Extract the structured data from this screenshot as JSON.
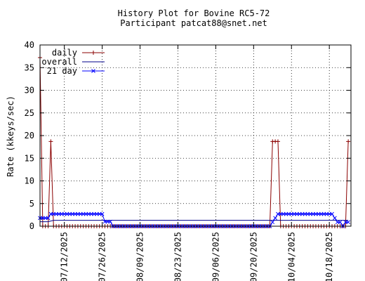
{
  "chart_data": {
    "type": "line",
    "title": "History Plot for Bovine RC5-72",
    "subtitle": "Participant patcat88@snet.net",
    "xlabel": "",
    "ylabel": "Rate (kkeys/sec)",
    "ylim": [
      0,
      40
    ],
    "yticks": [
      0,
      5,
      10,
      15,
      20,
      25,
      30,
      35,
      40
    ],
    "xlim": [
      "2025-07-03",
      "2025-10-26"
    ],
    "xticks": [
      "2025-07-12",
      "2025-07-26",
      "2025-08-09",
      "2025-08-23",
      "2025-09-06",
      "2025-09-20",
      "2025-10-04",
      "2025-10-18"
    ],
    "xtick_labels": [
      "07/12/2025",
      "07/26/2025",
      "08/09/2025",
      "08/23/2025",
      "09/06/2025",
      "09/20/2025",
      "10/04/2025",
      "10/18/2025"
    ],
    "grid": true,
    "legend_position": "top-left",
    "series": [
      {
        "name": "daily",
        "color": "#8b0000",
        "marker": "+",
        "points": [
          [
            "2025-07-03",
            37.2
          ],
          [
            "2025-07-04",
            0
          ],
          [
            "2025-07-05",
            0
          ],
          [
            "2025-07-06",
            0
          ],
          [
            "2025-07-07",
            18.7
          ],
          [
            "2025-07-08",
            0
          ],
          [
            "2025-07-09",
            0
          ],
          [
            "2025-07-10",
            0
          ],
          [
            "2025-07-11",
            0
          ],
          [
            "2025-07-12",
            0
          ],
          [
            "2025-07-13",
            0
          ],
          [
            "2025-07-14",
            0
          ],
          [
            "2025-07-15",
            0
          ],
          [
            "2025-07-16",
            0
          ],
          [
            "2025-07-17",
            0
          ],
          [
            "2025-07-18",
            0
          ],
          [
            "2025-07-19",
            0
          ],
          [
            "2025-07-20",
            0
          ],
          [
            "2025-07-21",
            0
          ],
          [
            "2025-07-22",
            0
          ],
          [
            "2025-07-23",
            0
          ],
          [
            "2025-07-24",
            0
          ],
          [
            "2025-07-25",
            0
          ],
          [
            "2025-07-26",
            0
          ],
          [
            "2025-07-27",
            0
          ],
          [
            "2025-07-28",
            0
          ],
          [
            "2025-07-29",
            0
          ],
          [
            "2025-07-30",
            0
          ],
          [
            "2025-07-31",
            0
          ],
          [
            "2025-08-01",
            0
          ],
          [
            "2025-08-02",
            0
          ],
          [
            "2025-08-03",
            0
          ],
          [
            "2025-08-04",
            0
          ],
          [
            "2025-08-05",
            0
          ],
          [
            "2025-08-06",
            0
          ],
          [
            "2025-08-07",
            0
          ],
          [
            "2025-08-08",
            0
          ],
          [
            "2025-08-09",
            0
          ],
          [
            "2025-08-10",
            0
          ],
          [
            "2025-08-11",
            0
          ],
          [
            "2025-08-12",
            0
          ],
          [
            "2025-08-13",
            0
          ],
          [
            "2025-08-14",
            0
          ],
          [
            "2025-08-15",
            0
          ],
          [
            "2025-08-16",
            0
          ],
          [
            "2025-08-17",
            0
          ],
          [
            "2025-08-18",
            0
          ],
          [
            "2025-08-19",
            0
          ],
          [
            "2025-08-20",
            0
          ],
          [
            "2025-08-21",
            0
          ],
          [
            "2025-08-22",
            0
          ],
          [
            "2025-08-23",
            0
          ],
          [
            "2025-08-24",
            0
          ],
          [
            "2025-08-25",
            0
          ],
          [
            "2025-08-26",
            0
          ],
          [
            "2025-08-27",
            0
          ],
          [
            "2025-08-28",
            0
          ],
          [
            "2025-08-29",
            0
          ],
          [
            "2025-08-30",
            0
          ],
          [
            "2025-08-31",
            0
          ],
          [
            "2025-09-01",
            0
          ],
          [
            "2025-09-02",
            0
          ],
          [
            "2025-09-03",
            0
          ],
          [
            "2025-09-04",
            0
          ],
          [
            "2025-09-05",
            0
          ],
          [
            "2025-09-06",
            0
          ],
          [
            "2025-09-07",
            0
          ],
          [
            "2025-09-08",
            0
          ],
          [
            "2025-09-09",
            0
          ],
          [
            "2025-09-10",
            0
          ],
          [
            "2025-09-11",
            0
          ],
          [
            "2025-09-12",
            0
          ],
          [
            "2025-09-13",
            0
          ],
          [
            "2025-09-14",
            0
          ],
          [
            "2025-09-15",
            0
          ],
          [
            "2025-09-16",
            0
          ],
          [
            "2025-09-17",
            0
          ],
          [
            "2025-09-18",
            0
          ],
          [
            "2025-09-19",
            0
          ],
          [
            "2025-09-20",
            0
          ],
          [
            "2025-09-21",
            0
          ],
          [
            "2025-09-22",
            0
          ],
          [
            "2025-09-23",
            0
          ],
          [
            "2025-09-24",
            0
          ],
          [
            "2025-09-25",
            0
          ],
          [
            "2025-09-26",
            0
          ],
          [
            "2025-09-27",
            18.7
          ],
          [
            "2025-09-28",
            18.7
          ],
          [
            "2025-09-29",
            18.7
          ],
          [
            "2025-09-30",
            0
          ],
          [
            "2025-10-01",
            0
          ],
          [
            "2025-10-02",
            0
          ],
          [
            "2025-10-03",
            0
          ],
          [
            "2025-10-04",
            0
          ],
          [
            "2025-10-05",
            0
          ],
          [
            "2025-10-06",
            0
          ],
          [
            "2025-10-07",
            0
          ],
          [
            "2025-10-08",
            0
          ],
          [
            "2025-10-09",
            0
          ],
          [
            "2025-10-10",
            0
          ],
          [
            "2025-10-11",
            0
          ],
          [
            "2025-10-12",
            0
          ],
          [
            "2025-10-13",
            0
          ],
          [
            "2025-10-14",
            0
          ],
          [
            "2025-10-15",
            0
          ],
          [
            "2025-10-16",
            0
          ],
          [
            "2025-10-17",
            0
          ],
          [
            "2025-10-18",
            0
          ],
          [
            "2025-10-19",
            0
          ],
          [
            "2025-10-20",
            0
          ],
          [
            "2025-10-21",
            0
          ],
          [
            "2025-10-22",
            0
          ],
          [
            "2025-10-23",
            0
          ],
          [
            "2025-10-24",
            0
          ],
          [
            "2025-10-25",
            18.7
          ]
        ]
      },
      {
        "name": "overall",
        "color": "#00008b",
        "marker": "",
        "points": [
          [
            "2025-07-03",
            1.0
          ],
          [
            "2025-07-06",
            1.0
          ],
          [
            "2025-07-08",
            1.3
          ],
          [
            "2025-10-25",
            1.3
          ]
        ]
      },
      {
        "name": "21 day",
        "color": "#0000ff",
        "marker": "x",
        "points": [
          [
            "2025-07-03",
            1.8
          ],
          [
            "2025-07-04",
            1.8
          ],
          [
            "2025-07-05",
            1.8
          ],
          [
            "2025-07-06",
            1.8
          ],
          [
            "2025-07-07",
            2.7
          ],
          [
            "2025-07-08",
            2.7
          ],
          [
            "2025-07-09",
            2.7
          ],
          [
            "2025-07-10",
            2.7
          ],
          [
            "2025-07-11",
            2.7
          ],
          [
            "2025-07-12",
            2.7
          ],
          [
            "2025-07-13",
            2.7
          ],
          [
            "2025-07-14",
            2.7
          ],
          [
            "2025-07-15",
            2.7
          ],
          [
            "2025-07-16",
            2.7
          ],
          [
            "2025-07-17",
            2.7
          ],
          [
            "2025-07-18",
            2.7
          ],
          [
            "2025-07-19",
            2.7
          ],
          [
            "2025-07-20",
            2.7
          ],
          [
            "2025-07-21",
            2.7
          ],
          [
            "2025-07-22",
            2.7
          ],
          [
            "2025-07-23",
            2.7
          ],
          [
            "2025-07-24",
            2.7
          ],
          [
            "2025-07-25",
            2.7
          ],
          [
            "2025-07-26",
            2.7
          ],
          [
            "2025-07-27",
            1.0
          ],
          [
            "2025-07-28",
            1.0
          ],
          [
            "2025-07-29",
            1.0
          ],
          [
            "2025-07-30",
            0
          ],
          [
            "2025-07-31",
            0
          ],
          [
            "2025-08-01",
            0
          ],
          [
            "2025-08-02",
            0
          ],
          [
            "2025-08-03",
            0
          ],
          [
            "2025-08-04",
            0
          ],
          [
            "2025-08-05",
            0
          ],
          [
            "2025-08-06",
            0
          ],
          [
            "2025-08-07",
            0
          ],
          [
            "2025-08-08",
            0
          ],
          [
            "2025-08-09",
            0
          ],
          [
            "2025-08-10",
            0
          ],
          [
            "2025-08-11",
            0
          ],
          [
            "2025-08-12",
            0
          ],
          [
            "2025-08-13",
            0
          ],
          [
            "2025-08-14",
            0
          ],
          [
            "2025-08-15",
            0
          ],
          [
            "2025-08-16",
            0
          ],
          [
            "2025-08-17",
            0
          ],
          [
            "2025-08-18",
            0
          ],
          [
            "2025-08-19",
            0
          ],
          [
            "2025-08-20",
            0
          ],
          [
            "2025-08-21",
            0
          ],
          [
            "2025-08-22",
            0
          ],
          [
            "2025-08-23",
            0
          ],
          [
            "2025-08-24",
            0
          ],
          [
            "2025-08-25",
            0
          ],
          [
            "2025-08-26",
            0
          ],
          [
            "2025-08-27",
            0
          ],
          [
            "2025-08-28",
            0
          ],
          [
            "2025-08-29",
            0
          ],
          [
            "2025-08-30",
            0
          ],
          [
            "2025-08-31",
            0
          ],
          [
            "2025-09-01",
            0
          ],
          [
            "2025-09-02",
            0
          ],
          [
            "2025-09-03",
            0
          ],
          [
            "2025-09-04",
            0
          ],
          [
            "2025-09-05",
            0
          ],
          [
            "2025-09-06",
            0
          ],
          [
            "2025-09-07",
            0
          ],
          [
            "2025-09-08",
            0
          ],
          [
            "2025-09-09",
            0
          ],
          [
            "2025-09-10",
            0
          ],
          [
            "2025-09-11",
            0
          ],
          [
            "2025-09-12",
            0
          ],
          [
            "2025-09-13",
            0
          ],
          [
            "2025-09-14",
            0
          ],
          [
            "2025-09-15",
            0
          ],
          [
            "2025-09-16",
            0
          ],
          [
            "2025-09-17",
            0
          ],
          [
            "2025-09-18",
            0
          ],
          [
            "2025-09-19",
            0
          ],
          [
            "2025-09-20",
            0
          ],
          [
            "2025-09-21",
            0
          ],
          [
            "2025-09-22",
            0
          ],
          [
            "2025-09-23",
            0
          ],
          [
            "2025-09-24",
            0
          ],
          [
            "2025-09-25",
            0
          ],
          [
            "2025-09-26",
            0
          ],
          [
            "2025-09-27",
            0.9
          ],
          [
            "2025-09-28",
            1.8
          ],
          [
            "2025-09-29",
            2.7
          ],
          [
            "2025-09-30",
            2.7
          ],
          [
            "2025-10-01",
            2.7
          ],
          [
            "2025-10-02",
            2.7
          ],
          [
            "2025-10-03",
            2.7
          ],
          [
            "2025-10-04",
            2.7
          ],
          [
            "2025-10-05",
            2.7
          ],
          [
            "2025-10-06",
            2.7
          ],
          [
            "2025-10-07",
            2.7
          ],
          [
            "2025-10-08",
            2.7
          ],
          [
            "2025-10-09",
            2.7
          ],
          [
            "2025-10-10",
            2.7
          ],
          [
            "2025-10-11",
            2.7
          ],
          [
            "2025-10-12",
            2.7
          ],
          [
            "2025-10-13",
            2.7
          ],
          [
            "2025-10-14",
            2.7
          ],
          [
            "2025-10-15",
            2.7
          ],
          [
            "2025-10-16",
            2.7
          ],
          [
            "2025-10-17",
            2.7
          ],
          [
            "2025-10-18",
            2.7
          ],
          [
            "2025-10-19",
            2.7
          ],
          [
            "2025-10-20",
            1.8
          ],
          [
            "2025-10-21",
            0.9
          ],
          [
            "2025-10-22",
            0.9
          ],
          [
            "2025-10-23",
            0
          ],
          [
            "2025-10-24",
            0.9
          ],
          [
            "2025-10-25",
            0.9
          ]
        ]
      }
    ]
  }
}
